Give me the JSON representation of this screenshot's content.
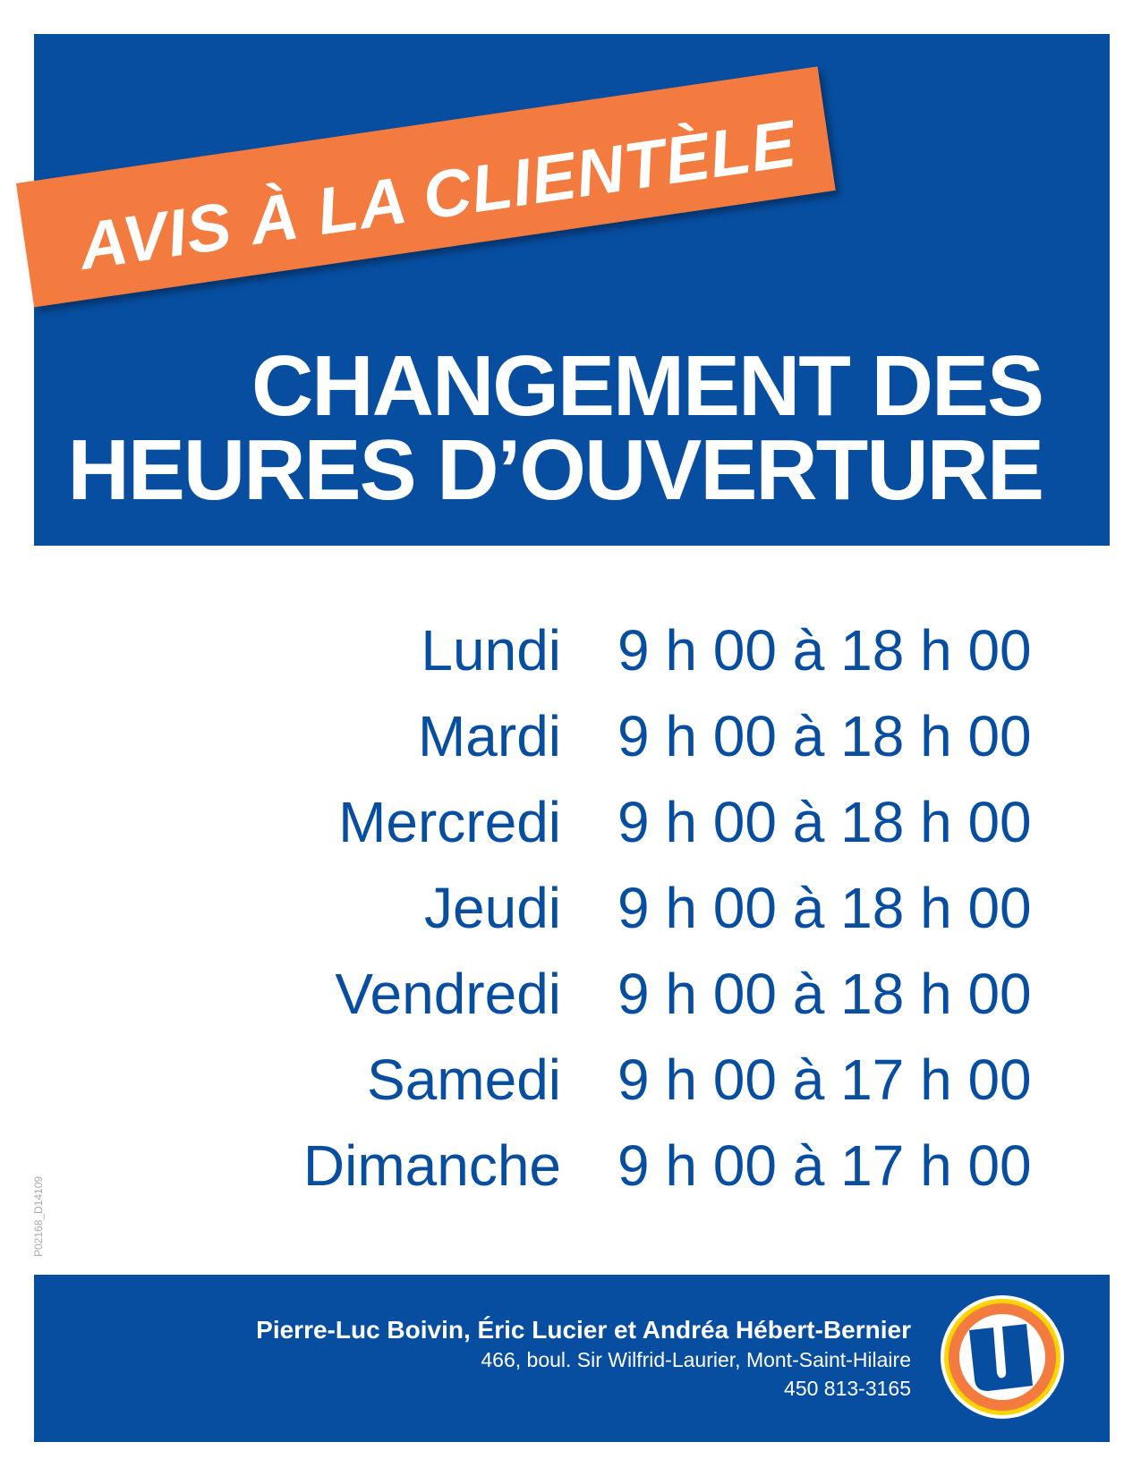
{
  "banner": {
    "text": "AVIS À LA CLIENTÈLE"
  },
  "headline": {
    "line1": "CHANGEMENT DES",
    "line2": "HEURES D’OUVERTURE"
  },
  "hours": [
    {
      "day": "Lundi",
      "time": "9 h 00 à 18 h 00"
    },
    {
      "day": "Mardi",
      "time": "9 h 00 à 18 h 00"
    },
    {
      "day": "Mercredi",
      "time": "9 h 00 à 18 h 00"
    },
    {
      "day": "Jeudi",
      "time": "9 h 00 à 18 h 00"
    },
    {
      "day": "Vendredi",
      "time": "9 h 00 à 18 h 00"
    },
    {
      "day": "Samedi",
      "time": "9 h 00 à 17 h 00"
    },
    {
      "day": "Dimanche",
      "time": "9 h 00 à 17 h 00"
    }
  ],
  "code": "P02168_D14109",
  "footer": {
    "owners": "Pierre-Luc Boivin, Éric Lucier et Andréa Hébert-Bernier",
    "address": "466, boul. Sir Wilfrid-Laurier, Mont-Saint-Hilaire",
    "phone": "450 813-3165",
    "logo": "U"
  },
  "colors": {
    "blue": "#074ea1",
    "orange": "#f37b3f",
    "yellow": "#ffd400"
  }
}
